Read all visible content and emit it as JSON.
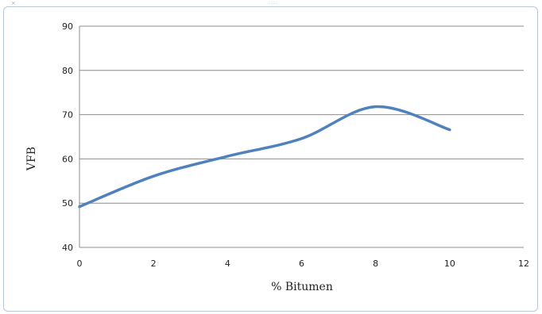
{
  "chart_data": {
    "type": "line",
    "title": "",
    "xlabel": "% Bitumen",
    "ylabel": "VFB",
    "xlim": [
      0,
      12
    ],
    "ylim": [
      40,
      90
    ],
    "x_ticks": [
      "0",
      "2",
      "4",
      "6",
      "8",
      "10",
      "12"
    ],
    "y_ticks": [
      "40",
      "50",
      "60",
      "70",
      "80",
      "90"
    ],
    "grid": "horizontal",
    "smooth": true,
    "series": [
      {
        "x": [
          0,
          2,
          4,
          6,
          8,
          10
        ],
        "values": [
          49.2,
          56.1,
          60.6,
          64.6,
          71.8,
          66.6
        ],
        "color": "#4f81bd"
      }
    ]
  }
}
